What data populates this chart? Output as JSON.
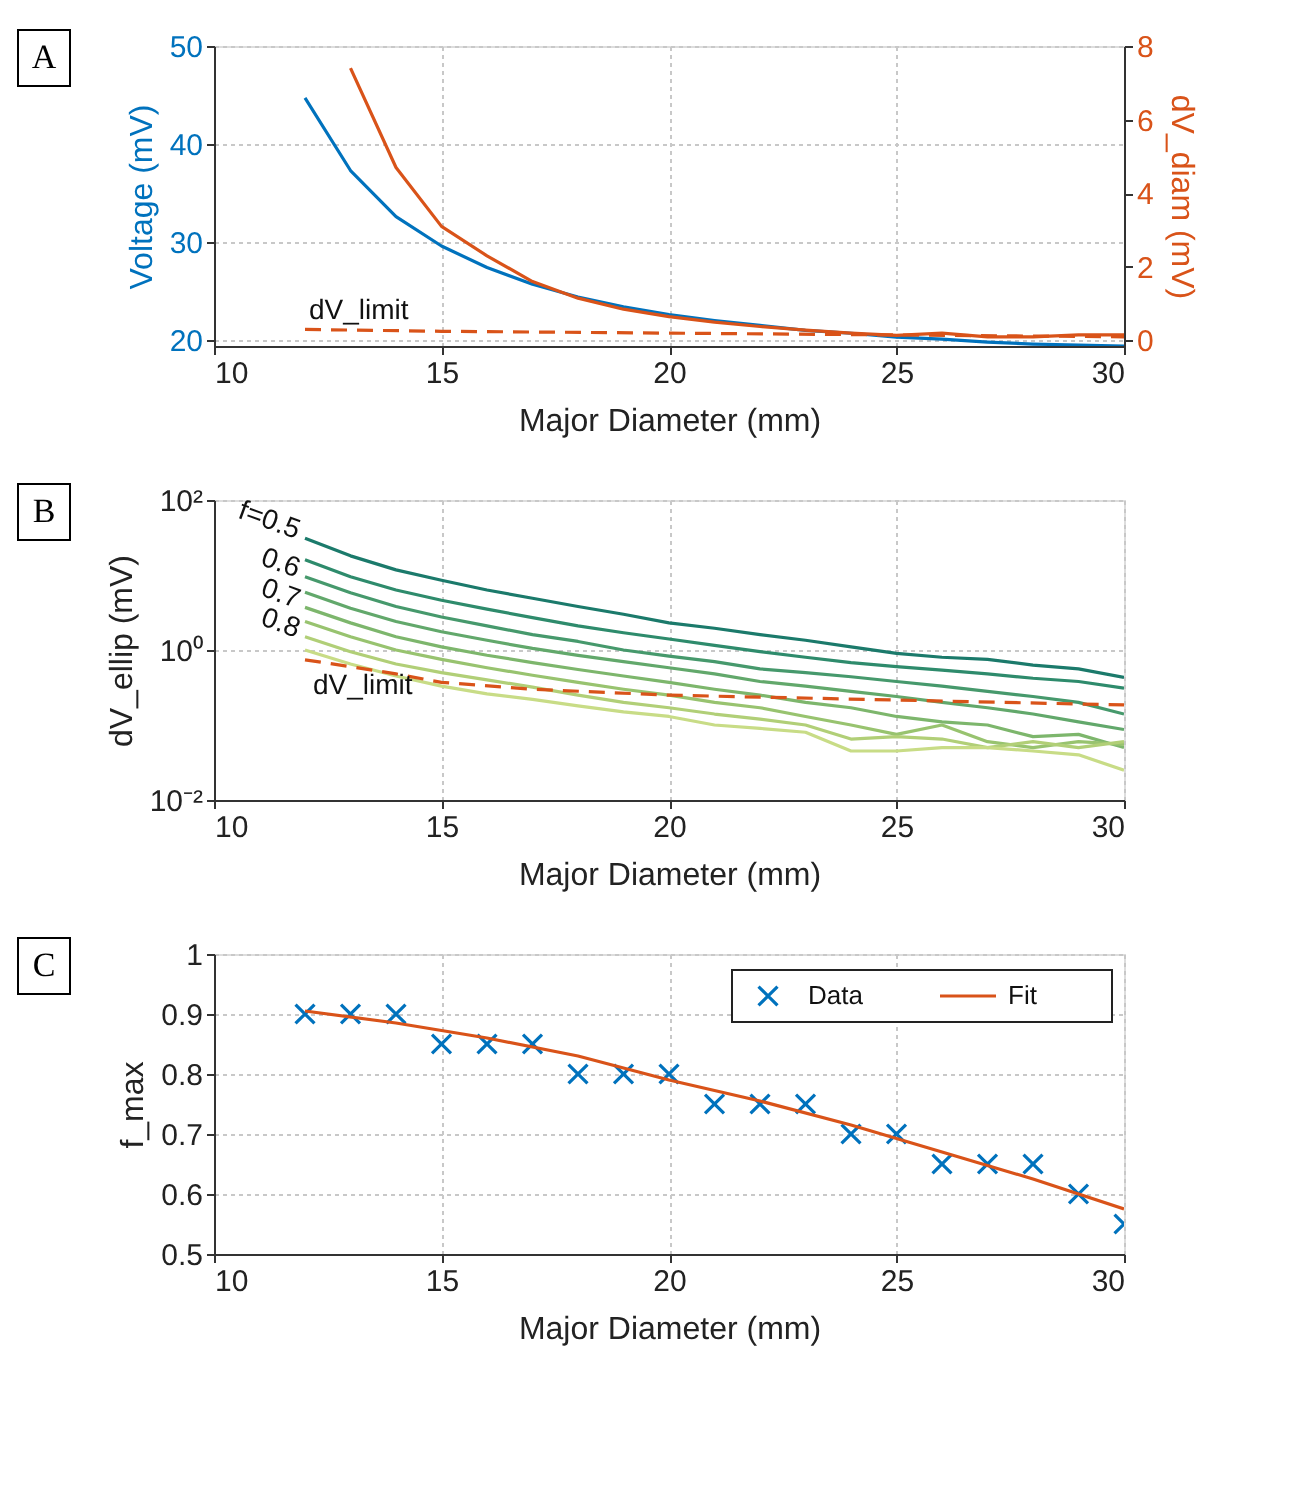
{
  "chart_data": [
    {
      "type": "line",
      "annotations": [
        "A"
      ],
      "xlabel": "Major Diameter (mm)",
      "ylabel": "Voltage (mV)",
      "y2label": "dV_diam (mV)",
      "xlim": [
        10,
        30
      ],
      "xticks": [
        10,
        15,
        20,
        25,
        30
      ],
      "ylim": [
        19.4,
        50
      ],
      "yticks": [
        20,
        30,
        40,
        50
      ],
      "y2lim": [
        -0.15,
        8
      ],
      "y2ticks": [
        0,
        2,
        4,
        6,
        8
      ],
      "grid": true,
      "x": [
        12,
        13,
        14,
        15,
        16,
        17,
        18,
        19,
        20,
        21,
        22,
        23,
        24,
        25,
        26,
        27,
        28,
        29,
        30
      ],
      "series": [
        {
          "color": "#0072bd",
          "values": [
            44.7,
            37.3,
            32.6,
            29.6,
            27.4,
            25.7,
            24.4,
            23.4,
            22.6,
            22.0,
            21.5,
            21.0,
            20.7,
            20.3,
            20.1,
            19.8,
            19.6,
            19.5,
            19.4
          ]
        },
        {
          "color": "#d95319",
          "axis": "y2",
          "x": [
            13,
            14,
            15,
            16,
            17,
            18,
            19,
            20,
            21,
            22,
            23,
            24,
            25,
            26,
            27,
            28,
            29,
            30
          ],
          "values": [
            7.4,
            4.7,
            3.1,
            2.3,
            1.6,
            1.15,
            0.85,
            0.65,
            0.5,
            0.38,
            0.28,
            0.2,
            0.14,
            0.2,
            0.1,
            0.1,
            0.15,
            0.15
          ]
        },
        {
          "name": "dV_limit",
          "color": "#d95319",
          "axis": "y2",
          "line_style": "dashed",
          "x": [
            12,
            15,
            20,
            25,
            30
          ],
          "values": [
            0.3,
            0.25,
            0.2,
            0.15,
            0.1
          ]
        }
      ]
    },
    {
      "type": "line",
      "annotations": [
        "B"
      ],
      "xlabel": "Major Diameter (mm)",
      "ylabel": "dV_ellip (mV)",
      "xlim": [
        10,
        30
      ],
      "xticks": [
        10,
        15,
        20,
        25,
        30
      ],
      "ylim": [
        0.01,
        100
      ],
      "yticks": [
        {
          "value": 0.01,
          "label": "10⁻²"
        },
        {
          "value": 1,
          "label": "10⁰"
        },
        {
          "value": 100,
          "label": "10²"
        }
      ],
      "log": "y",
      "grid": true,
      "x": [
        12,
        13,
        14,
        15,
        16,
        17,
        18,
        19,
        20,
        21,
        22,
        23,
        24,
        25,
        26,
        27,
        28,
        29,
        30
      ],
      "series": [
        {
          "name": "f=0.5",
          "color": "#1b7a6b",
          "values": [
            31,
            18,
            11.7,
            8.5,
            6.3,
            4.9,
            3.8,
            3.0,
            2.3,
            1.95,
            1.6,
            1.35,
            1.1,
            0.9,
            0.8,
            0.75,
            0.63,
            0.56,
            0.43
          ]
        },
        {
          "color": "#2e8b6c",
          "values": [
            16,
            9.5,
            6.3,
            4.6,
            3.5,
            2.7,
            2.1,
            1.7,
            1.4,
            1.15,
            0.95,
            0.8,
            0.68,
            0.6,
            0.54,
            0.48,
            0.42,
            0.38,
            0.31
          ]
        },
        {
          "name": "0.6",
          "color": "#46996c",
          "values": [
            9.5,
            5.8,
            3.8,
            2.75,
            2.1,
            1.6,
            1.3,
            1.0,
            0.83,
            0.7,
            0.56,
            0.5,
            0.44,
            0.38,
            0.33,
            0.28,
            0.24,
            0.2,
            0.14
          ]
        },
        {
          "color": "#62a86b",
          "values": [
            5.9,
            3.6,
            2.4,
            1.75,
            1.35,
            1.05,
            0.85,
            0.7,
            0.58,
            0.48,
            0.38,
            0.33,
            0.28,
            0.24,
            0.2,
            0.17,
            0.14,
            0.11,
            0.087
          ]
        },
        {
          "name": "0.7",
          "color": "#7db66c",
          "values": [
            3.7,
            2.3,
            1.5,
            1.1,
            0.85,
            0.68,
            0.55,
            0.45,
            0.37,
            0.3,
            0.25,
            0.2,
            0.17,
            0.13,
            0.11,
            0.1,
            0.07,
            0.075,
            0.05
          ]
        },
        {
          "color": "#98c36f",
          "values": [
            2.4,
            1.5,
            1.0,
            0.75,
            0.58,
            0.46,
            0.37,
            0.3,
            0.25,
            0.2,
            0.17,
            0.13,
            0.1,
            0.075,
            0.1,
            0.06,
            0.05,
            0.06,
            0.055
          ]
        },
        {
          "name": "0.8",
          "color": "#b1cf77",
          "values": [
            1.5,
            0.95,
            0.65,
            0.5,
            0.4,
            0.32,
            0.25,
            0.2,
            0.17,
            0.14,
            0.12,
            0.1,
            0.065,
            0.07,
            0.065,
            0.05,
            0.06,
            0.05,
            0.06
          ]
        },
        {
          "color": "#c8dc86",
          "values": [
            1.0,
            0.65,
            0.45,
            0.33,
            0.26,
            0.22,
            0.18,
            0.15,
            0.13,
            0.1,
            0.09,
            0.08,
            0.045,
            0.045,
            0.05,
            0.05,
            0.045,
            0.04,
            0.025
          ]
        },
        {
          "name": "dV_limit",
          "color": "#d95319",
          "line_style": "dashed",
          "x": [
            12,
            13,
            14,
            15,
            17,
            20,
            25,
            30
          ],
          "values": [
            0.74,
            0.6,
            0.48,
            0.37,
            0.3,
            0.25,
            0.215,
            0.185
          ]
        }
      ]
    },
    {
      "type": "scatter",
      "annotations": [
        "C"
      ],
      "xlabel": "Major Diameter (mm)",
      "ylabel": "f_max",
      "xlim": [
        10,
        30
      ],
      "xticks": [
        10,
        15,
        20,
        25,
        30
      ],
      "ylim": [
        0.5,
        1
      ],
      "yticks": [
        0.5,
        0.6,
        0.7,
        0.8,
        0.9,
        1
      ],
      "grid": true,
      "legend": "top right",
      "x": [
        12,
        13,
        14,
        15,
        16,
        17,
        18,
        19,
        20,
        21,
        22,
        23,
        24,
        25,
        26,
        27,
        28,
        29,
        30
      ],
      "series": [
        {
          "name": "Data",
          "type": "scatter",
          "marker": "cross",
          "color": "#0072bd",
          "values": [
            0.9,
            0.9,
            0.9,
            0.85,
            0.85,
            0.85,
            0.8,
            0.8,
            0.8,
            0.75,
            0.75,
            0.75,
            0.7,
            0.7,
            0.65,
            0.65,
            0.65,
            0.6,
            0.55
          ]
        },
        {
          "name": "Fit",
          "type": "line",
          "color": "#d95319",
          "x": [
            12,
            14,
            16,
            18,
            20,
            22,
            24,
            26,
            28,
            30
          ],
          "values": [
            0.905,
            0.885,
            0.86,
            0.83,
            0.79,
            0.755,
            0.715,
            0.67,
            0.625,
            0.575
          ]
        }
      ]
    }
  ]
}
